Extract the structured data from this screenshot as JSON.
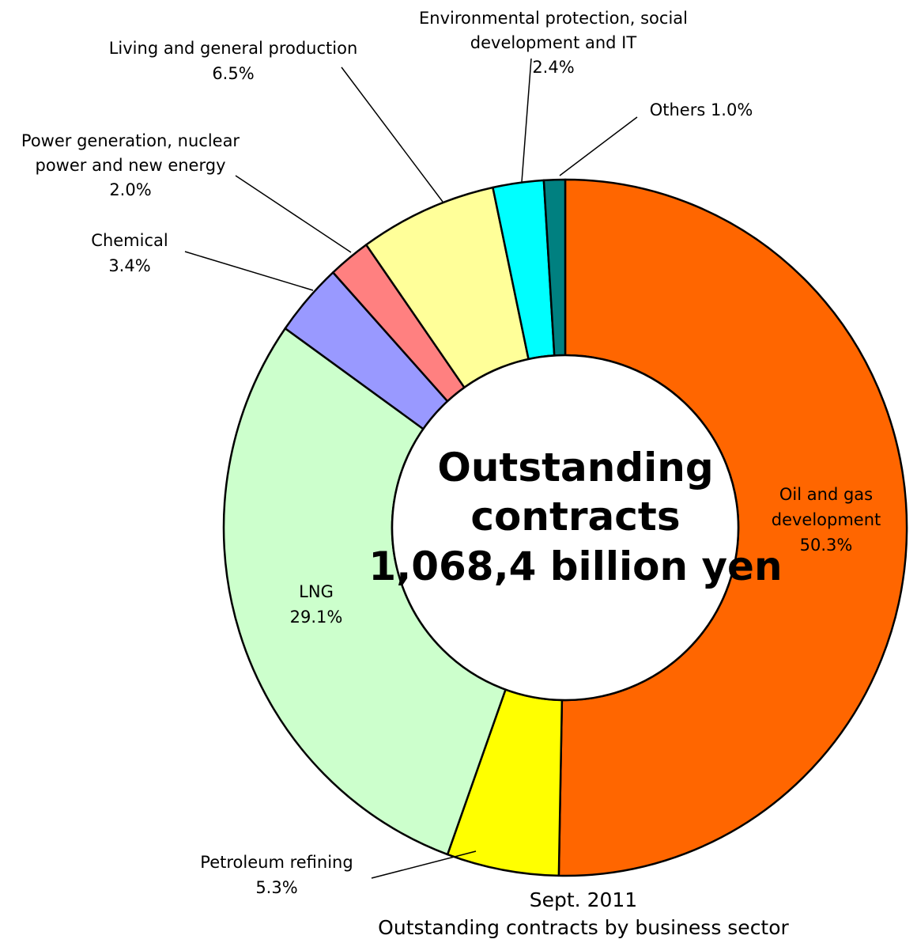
{
  "chart_data": {
    "type": "pie",
    "subtype": "donut",
    "start": "12 o'clock",
    "direction": "clockwise",
    "center_text": [
      "Outstanding",
      "contracts",
      "1,068,4 billion yen"
    ],
    "footer": [
      "Sept. 2011",
      "Outstanding contracts by business sector"
    ],
    "slices": [
      {
        "id": "oil-gas",
        "label_lines": [
          "Oil and gas",
          "development"
        ],
        "percent_text": "50.3%",
        "value": 50.3,
        "color": "#FF6600"
      },
      {
        "id": "petroleum",
        "label_lines": [
          "Petroleum refining"
        ],
        "percent_text": "5.3%",
        "value": 5.3,
        "color": "#FFFF00"
      },
      {
        "id": "lng",
        "label_lines": [
          "LNG"
        ],
        "percent_text": "29.1%",
        "value": 29.1,
        "color": "#CCFFCC"
      },
      {
        "id": "chemical",
        "label_lines": [
          "Chemical"
        ],
        "percent_text": "3.4%",
        "value": 3.4,
        "color": "#9999FF"
      },
      {
        "id": "power",
        "label_lines": [
          "Power generation, nuclear",
          "power and new energy"
        ],
        "percent_text": "2.0%",
        "value": 2.0,
        "color": "#FF8080"
      },
      {
        "id": "living",
        "label_lines": [
          "Living and general production"
        ],
        "percent_text": "6.5%",
        "value": 6.5,
        "color": "#FFFF99"
      },
      {
        "id": "environment",
        "label_lines": [
          "Environmental protection, social",
          "development and IT"
        ],
        "percent_text": "2.4%",
        "value": 2.4,
        "color": "#00FFFF"
      },
      {
        "id": "others",
        "label_lines": [
          "Others  1.0%"
        ],
        "percent_text": "",
        "value": 1.0,
        "color": "#008080"
      }
    ]
  }
}
